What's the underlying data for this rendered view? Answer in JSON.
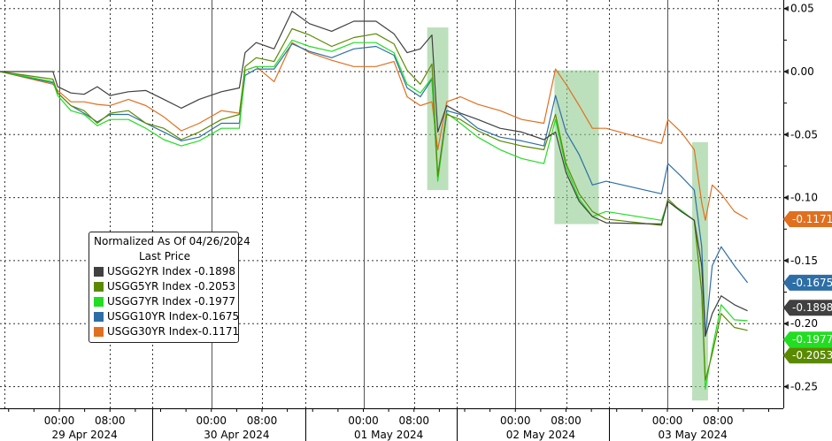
{
  "chart_data": {
    "type": "line",
    "title": "",
    "xlabel": "",
    "ylabel": "",
    "ylim": [
      -0.265,
      0.057
    ],
    "grid": true,
    "y_axis_side": "right",
    "yticks": [
      0.05,
      0.0,
      -0.05,
      -0.1,
      -0.15,
      -0.2,
      -0.25
    ],
    "ytick_labels": [
      "0.05",
      "0.00",
      "-0.05",
      "-0.10",
      "-0.15",
      "-0.20",
      "-0.25"
    ],
    "xticks": [
      {
        "time": "2024-04-29T00:00",
        "label": "00:00"
      },
      {
        "time": "2024-04-29T08:00",
        "label": "08:00"
      },
      {
        "time": "2024-04-30T00:00",
        "label": "00:00"
      },
      {
        "time": "2024-04-30T08:00",
        "label": "08:00"
      },
      {
        "time": "2024-05-01T00:00",
        "label": "00:00"
      },
      {
        "time": "2024-05-01T08:00",
        "label": "08:00"
      },
      {
        "time": "2024-05-02T00:00",
        "label": "00:00"
      },
      {
        "time": "2024-05-02T08:00",
        "label": "08:00"
      },
      {
        "time": "2024-05-03T00:00",
        "label": "00:00"
      },
      {
        "time": "2024-05-03T08:00",
        "label": "08:00"
      }
    ],
    "day_labels": [
      "29 Apr 2024",
      "30 Apr 2024",
      "01 May 2024",
      "02 May 2024",
      "03 May 2024"
    ],
    "legend": {
      "placement": "lower-left",
      "title": "Normalized As Of 04/26/2024",
      "subtitle": "Last Price"
    },
    "highlights": [
      {
        "start": "2024-05-01T10:05",
        "end": "2024-05-01T13:25",
        "ymin": -0.094,
        "ymax": 0.035,
        "color": "#8fcc8f"
      },
      {
        "start": "2024-05-02T06:10",
        "end": "2024-05-02T13:10",
        "ymin": -0.121,
        "ymax": 0.001,
        "color": "#8fcc8f"
      },
      {
        "start": "2024-05-03T03:55",
        "end": "2024-05-03T06:25",
        "ymin": -0.261,
        "ymax": -0.056,
        "color": "#8fcc8f"
      }
    ],
    "x": [
      "2024-04-28T14:40",
      "2024-04-28T23:00",
      "2024-04-28T23:45",
      "2024-04-29T01:50",
      "2024-04-29T03:55",
      "2024-04-29T06:00",
      "2024-04-29T08:00",
      "2024-04-29T10:55",
      "2024-04-29T13:40",
      "2024-04-29T16:30",
      "2024-04-29T19:15",
      "2024-04-29T22:05",
      "2024-04-30T01:35",
      "2024-04-30T04:25",
      "2024-04-30T05:20",
      "2024-04-30T07:05",
      "2024-04-30T09:55",
      "2024-04-30T12:45",
      "2024-04-30T15:30",
      "2024-04-30T19:00",
      "2024-04-30T22:30",
      "2024-05-01T02:00",
      "2024-05-01T04:50",
      "2024-05-01T06:55",
      "2024-05-01T09:00",
      "2024-05-01T10:50",
      "2024-05-01T11:45",
      "2024-05-01T13:10",
      "2024-05-01T15:20",
      "2024-05-01T18:05",
      "2024-05-01T21:35",
      "2024-05-02T01:00",
      "2024-05-02T04:30",
      "2024-05-02T06:20",
      "2024-05-02T08:00",
      "2024-05-02T10:05",
      "2024-05-02T12:10",
      "2024-05-02T14:20",
      "2024-05-02T23:05",
      "2024-05-03T00:05",
      "2024-05-03T02:10",
      "2024-05-03T04:15",
      "2024-05-03T05:25",
      "2024-05-03T06:00",
      "2024-05-03T07:05",
      "2024-05-03T08:30",
      "2024-05-03T10:35",
      "2024-05-03T12:40"
    ],
    "series": [
      {
        "name": "USGG30YR Index",
        "last": "-0.1171",
        "color": "#e07020",
        "values": [
          0,
          -0.01,
          -0.015,
          -0.024,
          -0.024,
          -0.026,
          -0.027,
          -0.022,
          -0.027,
          -0.036,
          -0.047,
          -0.041,
          -0.031,
          -0.033,
          0.001,
          0.004,
          -0.008,
          0.023,
          0.015,
          0.009,
          0.004,
          0.004,
          0.008,
          -0.02,
          -0.027,
          -0.024,
          -0.062,
          -0.024,
          -0.02,
          -0.026,
          -0.031,
          -0.038,
          -0.041,
          0.002,
          -0.01,
          -0.027,
          -0.045,
          -0.045,
          -0.057,
          -0.038,
          -0.048,
          -0.062,
          -0.104,
          -0.118,
          -0.09,
          -0.097,
          -0.111,
          -0.1171
        ]
      },
      {
        "name": "USGG10YR Index",
        "last": "-0.1675",
        "color": "#2e6ea6",
        "values": [
          0,
          -0.009,
          -0.017,
          -0.027,
          -0.033,
          -0.04,
          -0.034,
          -0.034,
          -0.041,
          -0.048,
          -0.055,
          -0.052,
          -0.041,
          -0.041,
          -0.003,
          0.002,
          0.002,
          0.022,
          0.016,
          0.011,
          0.018,
          0.02,
          0.013,
          -0.013,
          -0.02,
          -0.006,
          -0.083,
          -0.031,
          -0.034,
          -0.045,
          -0.052,
          -0.055,
          -0.059,
          -0.019,
          -0.048,
          -0.066,
          -0.09,
          -0.087,
          -0.097,
          -0.073,
          -0.083,
          -0.094,
          -0.139,
          -0.21,
          -0.154,
          -0.139,
          -0.154,
          -0.1675
        ]
      },
      {
        "name": "USGG7YR Index",
        "last": "-0.1977",
        "color": "#22dd22",
        "values": [
          0,
          -0.008,
          -0.019,
          -0.031,
          -0.034,
          -0.043,
          -0.038,
          -0.038,
          -0.045,
          -0.054,
          -0.059,
          -0.055,
          -0.045,
          -0.045,
          0.001,
          0.004,
          0.004,
          0.025,
          0.02,
          0.016,
          0.023,
          0.023,
          0.015,
          -0.01,
          -0.017,
          -0.005,
          -0.087,
          -0.033,
          -0.041,
          -0.052,
          -0.062,
          -0.069,
          -0.073,
          -0.038,
          -0.076,
          -0.101,
          -0.115,
          -0.111,
          -0.118,
          -0.103,
          -0.11,
          -0.118,
          -0.175,
          -0.252,
          -0.22,
          -0.185,
          -0.197,
          -0.1977
        ]
      },
      {
        "name": "USGG5YR Index",
        "last": "-0.2053",
        "color": "#5a8a00",
        "values": [
          0,
          -0.006,
          -0.017,
          -0.027,
          -0.031,
          -0.041,
          -0.033,
          -0.031,
          -0.041,
          -0.045,
          -0.054,
          -0.048,
          -0.038,
          -0.034,
          0.004,
          0.011,
          0.008,
          0.034,
          0.029,
          0.02,
          0.027,
          0.03,
          0.022,
          0.001,
          -0.01,
          0.006,
          -0.083,
          -0.034,
          -0.038,
          -0.047,
          -0.055,
          -0.059,
          -0.062,
          -0.034,
          -0.073,
          -0.097,
          -0.111,
          -0.117,
          -0.122,
          -0.101,
          -0.111,
          -0.118,
          -0.175,
          -0.245,
          -0.224,
          -0.192,
          -0.203,
          -0.2053
        ]
      },
      {
        "name": "USGG2YR Index",
        "last": "-0.1898",
        "color": "#404040",
        "values": [
          0,
          0,
          -0.012,
          -0.017,
          -0.018,
          -0.012,
          -0.019,
          -0.016,
          -0.015,
          -0.022,
          -0.029,
          -0.022,
          -0.016,
          -0.013,
          0.015,
          0.023,
          0.018,
          0.048,
          0.038,
          0.032,
          0.04,
          0.04,
          0.03,
          0.015,
          0.018,
          0.029,
          -0.048,
          -0.027,
          -0.033,
          -0.038,
          -0.045,
          -0.048,
          -0.054,
          -0.048,
          -0.08,
          -0.103,
          -0.115,
          -0.12,
          -0.121,
          -0.103,
          -0.111,
          -0.118,
          -0.154,
          -0.21,
          -0.192,
          -0.178,
          -0.185,
          -0.1898
        ]
      }
    ],
    "legend_order": [
      "USGG2YR Index",
      "USGG5YR Index",
      "USGG7YR Index",
      "USGG10YR Index",
      "USGG30YR Index"
    ]
  },
  "legend": {
    "title": "Normalized As Of 04/26/2024",
    "subtitle": "Last Price",
    "items": [
      {
        "name": "USGG2YR Index",
        "value": "-0.1898",
        "color": "#404040"
      },
      {
        "name": "USGG5YR Index",
        "value": "-0.2053",
        "color": "#5a8a00"
      },
      {
        "name": "USGG7YR Index",
        "value": "-0.1977",
        "color": "#22dd22"
      },
      {
        "name": "USGG10YR Index",
        "value": "-0.1675",
        "color": "#2e6ea6"
      },
      {
        "name": "USGG30YR Index",
        "value": "-0.1171",
        "color": "#e07020"
      }
    ]
  }
}
